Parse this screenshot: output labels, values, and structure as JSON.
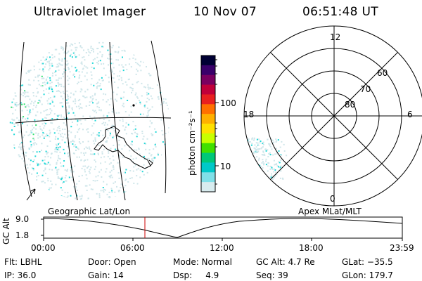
{
  "header": {
    "instrument": "Ultraviolet Imager",
    "date": "10 Nov 07",
    "time": "06:51:48 UT"
  },
  "colorbar": {
    "label": "photon cm⁻²s⁻¹",
    "scale": "log",
    "tick_labels": [
      "100",
      "10"
    ],
    "colors": [
      "#000033",
      "#3a006a",
      "#7a0060",
      "#c0003a",
      "#e82020",
      "#ff7000",
      "#ffb000",
      "#ffe000",
      "#c8ff00",
      "#40e000",
      "#00c878",
      "#00c8c8",
      "#80e0e8",
      "#d8ecef"
    ]
  },
  "polar_plot": {
    "mlt_labels": [
      "12",
      "18",
      "6",
      "0"
    ],
    "lat_labels": [
      "60",
      "70",
      "80"
    ]
  },
  "timeline": {
    "left_title": "Geographic Lat/Lon",
    "right_title": "Apex  MLat/MLT",
    "ylabel": "GC Alt",
    "y_ticks": [
      "9.0",
      "1.8"
    ],
    "x_ticks": [
      "00:00",
      "06:00",
      "12:00",
      "18:00",
      "23:59"
    ],
    "current_time_marker_hours": 6.86
  },
  "info": {
    "row1": [
      {
        "label": "Flt: LBHL"
      },
      {
        "label": "Door: Open"
      },
      {
        "label": "Mode: Normal"
      },
      {
        "label": "GC Alt: 4.7 Re"
      },
      {
        "label": "GLat: −35.5"
      }
    ],
    "row2": [
      {
        "label": "IP: 36.0"
      },
      {
        "label": "Gain: 14"
      },
      {
        "label": "Dsp:     4.9"
      },
      {
        "label": "Seq: 39"
      },
      {
        "label": "GLon: 179.7"
      }
    ]
  },
  "theme": {
    "aurora_light": "#cfe6ea",
    "aurora_cyan": "#20d8d8",
    "aurora_green": "#30e070",
    "marker_red": "#cc0000"
  }
}
